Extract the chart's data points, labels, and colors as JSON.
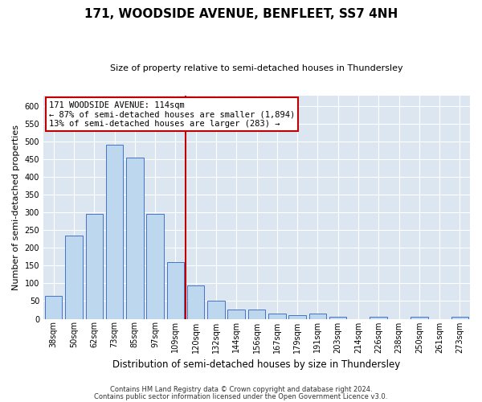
{
  "title": "171, WOODSIDE AVENUE, BENFLEET, SS7 4NH",
  "subtitle": "Size of property relative to semi-detached houses in Thundersley",
  "xlabel": "Distribution of semi-detached houses by size in Thundersley",
  "ylabel": "Number of semi-detached properties",
  "footer1": "Contains HM Land Registry data © Crown copyright and database right 2024.",
  "footer2": "Contains public sector information licensed under the Open Government Licence v3.0.",
  "annotation_title": "171 WOODSIDE AVENUE: 114sqm",
  "annotation_line1": "← 87% of semi-detached houses are smaller (1,894)",
  "annotation_line2": "13% of semi-detached houses are larger (283) →",
  "property_line_x": 6.5,
  "bar_color": "#bdd7ee",
  "bar_edge_color": "#4472c4",
  "line_color": "#c00000",
  "annotation_box_color": "#c00000",
  "categories": [
    0,
    1,
    2,
    3,
    4,
    5,
    6,
    7,
    8,
    9,
    10,
    11,
    12,
    13,
    14,
    15,
    16,
    17,
    18,
    19,
    20
  ],
  "cat_labels": [
    "38sqm",
    "50sqm",
    "62sqm",
    "73sqm",
    "85sqm",
    "97sqm",
    "109sqm",
    "120sqm",
    "132sqm",
    "144sqm",
    "156sqm",
    "167sqm",
    "179sqm",
    "191sqm",
    "203sqm",
    "214sqm",
    "226sqm",
    "238sqm",
    "250sqm",
    "261sqm",
    "273sqm"
  ],
  "values": [
    65,
    235,
    295,
    490,
    455,
    295,
    160,
    95,
    50,
    25,
    25,
    15,
    10,
    15,
    5,
    0,
    5,
    0,
    5,
    0,
    5
  ],
  "ylim": [
    0,
    630
  ],
  "yticks": [
    0,
    50,
    100,
    150,
    200,
    250,
    300,
    350,
    400,
    450,
    500,
    550,
    600
  ],
  "bar_width": 0.85,
  "background_color": "#ffffff",
  "plot_bg_color": "#dce6f1",
  "title_fontsize": 11,
  "subtitle_fontsize": 8,
  "ylabel_fontsize": 8,
  "xlabel_fontsize": 8.5,
  "tick_fontsize": 7,
  "footer_fontsize": 6,
  "annot_fontsize": 7.5
}
